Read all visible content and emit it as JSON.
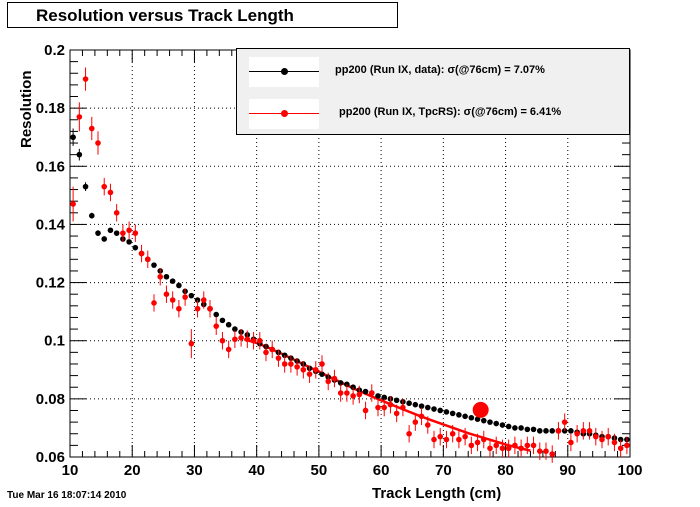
{
  "page": {
    "timestamp": "Tue Mar 16 18:07:14 2010"
  },
  "colors": {
    "series_data": "#000000",
    "series_sim": "#ff0000",
    "legend_bg": "#f0f0f0",
    "grid": "#000000"
  },
  "chart_data": {
    "type": "scatter",
    "title": "Resolution versus Track Length",
    "xlabel": "Track Length (cm)",
    "ylabel": "Resolution",
    "xlim": [
      10,
      100
    ],
    "ylim": [
      0.06,
      0.2
    ],
    "xticks": [
      10,
      20,
      30,
      40,
      50,
      60,
      70,
      80,
      90,
      100
    ],
    "yticks": [
      0.06,
      0.08,
      0.1,
      0.12,
      0.14,
      0.16,
      0.18,
      0.2
    ],
    "ytick_labels": [
      "0.06",
      "0.08",
      "0.1",
      "0.12",
      "0.14",
      "0.16",
      "0.18",
      "0.2"
    ],
    "grid": true,
    "legend_position": "top-right",
    "series": [
      {
        "name": "pp200 (Run IX, data): σ(@76cm) =  7.07%",
        "color": "#000000",
        "marker": "circle",
        "x": [
          10.5,
          11.5,
          12.5,
          13.5,
          14.5,
          15.5,
          16.5,
          17.5,
          18.5,
          19.5,
          20.5,
          21.5,
          22.5,
          23.5,
          24.5,
          25.5,
          26.5,
          27.5,
          28.5,
          29.5,
          30.5,
          31.5,
          32.5,
          33.5,
          34.5,
          35.5,
          36.5,
          37.5,
          38.5,
          39.5,
          40.5,
          41.5,
          42.5,
          43.5,
          44.5,
          45.5,
          46.5,
          47.5,
          48.5,
          49.5,
          50.5,
          51.5,
          52.5,
          53.5,
          54.5,
          55.5,
          56.5,
          57.5,
          58.5,
          59.5,
          60.5,
          61.5,
          62.5,
          63.5,
          64.5,
          65.5,
          66.5,
          67.5,
          68.5,
          69.5,
          70.5,
          71.5,
          72.5,
          73.5,
          74.5,
          75.5,
          76.5,
          77.5,
          78.5,
          79.5,
          80.5,
          81.5,
          82.5,
          83.5,
          84.5,
          85.5,
          86.5,
          87.5,
          88.5,
          89.5,
          90.5,
          91.5,
          92.5,
          93.5,
          94.5,
          95.5,
          96.5,
          97.5,
          98.5,
          99.5
        ],
        "y": [
          0.17,
          0.164,
          0.153,
          0.143,
          0.137,
          0.135,
          0.138,
          0.137,
          0.135,
          0.134,
          0.132,
          0.13,
          0.128,
          0.126,
          0.124,
          0.122,
          0.1205,
          0.119,
          0.117,
          0.1155,
          0.114,
          0.1125,
          0.111,
          0.109,
          0.107,
          0.1055,
          0.104,
          0.103,
          0.102,
          0.1005,
          0.099,
          0.098,
          0.097,
          0.096,
          0.095,
          0.094,
          0.093,
          0.092,
          0.0905,
          0.0895,
          0.0885,
          0.0875,
          0.0865,
          0.0855,
          0.085,
          0.084,
          0.083,
          0.0825,
          0.082,
          0.081,
          0.0805,
          0.08,
          0.0795,
          0.079,
          0.0785,
          0.078,
          0.0775,
          0.077,
          0.0765,
          0.076,
          0.0755,
          0.075,
          0.0745,
          0.074,
          0.0735,
          0.073,
          0.0725,
          0.072,
          0.0715,
          0.071,
          0.0705,
          0.07,
          0.07,
          0.0695,
          0.0695,
          0.069,
          0.069,
          0.069,
          0.069,
          0.069,
          0.069,
          0.0685,
          0.068,
          0.068,
          0.0675,
          0.067,
          0.067,
          0.0665,
          0.066,
          0.066
        ],
        "yerr": [
          0.003,
          0.002,
          0.0015,
          0.001,
          0.001,
          0.0008,
          0.0008,
          0.0007,
          0.0007,
          0.0006,
          0.0006,
          0.0005,
          0.0005,
          0.0005,
          0.0004,
          0.0004,
          0.0004,
          0.0004,
          0.0003,
          0.0003,
          0.0003,
          0.0003,
          0.0003,
          0.0003,
          0.0003,
          0.0003,
          0.0003,
          0.0003,
          0.0003,
          0.0003,
          0.0003,
          0.0003,
          0.0003,
          0.0003,
          0.0003,
          0.0003,
          0.0003,
          0.0003,
          0.0003,
          0.0003,
          0.0003,
          0.0003,
          0.0003,
          0.0003,
          0.0003,
          0.0003,
          0.0003,
          0.0003,
          0.0003,
          0.0003,
          0.0003,
          0.0003,
          0.0003,
          0.0003,
          0.0003,
          0.0003,
          0.0003,
          0.0003,
          0.0003,
          0.0003,
          0.0003,
          0.0003,
          0.0003,
          0.0003,
          0.0003,
          0.0003,
          0.0003,
          0.0003,
          0.0003,
          0.0003,
          0.0003,
          0.0003,
          0.0003,
          0.0003,
          0.0003,
          0.0003,
          0.0003,
          0.0003,
          0.0003,
          0.0003,
          0.0003,
          0.0003,
          0.0003,
          0.0003,
          0.0003,
          0.0003,
          0.0003,
          0.0003,
          0.0003,
          0.0003
        ]
      },
      {
        "name": "pp200 (Run IX, TpcRS):  σ(@76cm) =  6.41%",
        "color": "#ff0000",
        "marker": "circle",
        "x": [
          10.5,
          11.5,
          12.5,
          13.5,
          14.5,
          15.5,
          16.5,
          17.5,
          18.5,
          19.5,
          20.5,
          21.5,
          22.5,
          23.5,
          24.5,
          25.5,
          26.5,
          27.5,
          28.5,
          29.5,
          30.5,
          31.5,
          32.5,
          33.5,
          34.5,
          35.5,
          36.5,
          37.5,
          38.5,
          39.5,
          40.5,
          41.5,
          42.5,
          43.5,
          44.5,
          45.5,
          46.5,
          47.5,
          48.5,
          49.5,
          50.5,
          51.5,
          52.5,
          53.5,
          54.5,
          55.5,
          56.5,
          57.5,
          58.5,
          59.5,
          60.5,
          61.5,
          62.5,
          63.5,
          64.5,
          65.5,
          66.5,
          67.5,
          68.5,
          69.5,
          70.5,
          71.5,
          72.5,
          73.5,
          74.5,
          75.5,
          76.5,
          77.5,
          78.5,
          79.5,
          80.5,
          81.5,
          82.5,
          83.5,
          84.5,
          85.5,
          86.5,
          87.5,
          88.5,
          89.5,
          90.5,
          91.5,
          92.5,
          93.5,
          94.5,
          95.5,
          96.5,
          97.5,
          98.5,
          99.5
        ],
        "y": [
          0.147,
          0.177,
          0.19,
          0.173,
          0.168,
          0.153,
          0.151,
          0.144,
          0.137,
          0.138,
          0.137,
          0.13,
          0.128,
          0.113,
          0.122,
          0.116,
          0.114,
          0.111,
          0.115,
          0.099,
          0.111,
          0.114,
          0.111,
          0.105,
          0.1,
          0.097,
          0.1005,
          0.101,
          0.1005,
          0.1,
          0.1,
          0.096,
          0.097,
          0.094,
          0.092,
          0.092,
          0.091,
          0.09,
          0.0885,
          0.09,
          0.092,
          0.086,
          0.087,
          0.082,
          0.082,
          0.081,
          0.0815,
          0.076,
          0.082,
          0.077,
          0.077,
          0.078,
          0.075,
          0.077,
          0.068,
          0.072,
          0.074,
          0.071,
          0.066,
          0.067,
          0.066,
          0.068,
          0.066,
          0.067,
          0.064,
          0.065,
          0.066,
          0.063,
          0.064,
          0.063,
          0.063,
          0.064,
          0.063,
          0.064,
          0.064,
          0.062,
          0.062,
          0.061,
          0.069,
          0.072,
          0.065,
          0.068,
          0.069,
          0.069,
          0.067,
          0.066,
          0.067,
          0.065,
          0.063,
          0.064
        ],
        "yerr": [
          0.006,
          0.005,
          0.004,
          0.004,
          0.004,
          0.003,
          0.003,
          0.003,
          0.003,
          0.003,
          0.003,
          0.003,
          0.003,
          0.003,
          0.003,
          0.003,
          0.003,
          0.003,
          0.003,
          0.005,
          0.003,
          0.003,
          0.003,
          0.003,
          0.003,
          0.003,
          0.003,
          0.003,
          0.003,
          0.003,
          0.003,
          0.003,
          0.003,
          0.003,
          0.003,
          0.003,
          0.003,
          0.003,
          0.003,
          0.003,
          0.003,
          0.003,
          0.003,
          0.003,
          0.003,
          0.003,
          0.003,
          0.003,
          0.003,
          0.003,
          0.003,
          0.003,
          0.003,
          0.003,
          0.003,
          0.003,
          0.003,
          0.003,
          0.003,
          0.003,
          0.003,
          0.003,
          0.003,
          0.003,
          0.003,
          0.003,
          0.003,
          0.003,
          0.003,
          0.003,
          0.003,
          0.003,
          0.003,
          0.003,
          0.003,
          0.003,
          0.003,
          0.003,
          0.003,
          0.003,
          0.003,
          0.003,
          0.003,
          0.003,
          0.003,
          0.003,
          0.003,
          0.003,
          0.003,
          0.003
        ]
      }
    ],
    "fit_curve": {
      "color": "#ff0000",
      "x": [
        38,
        40,
        42,
        44,
        46,
        48,
        50,
        52,
        54,
        56,
        58,
        60,
        62,
        64,
        66,
        68,
        70,
        72,
        74,
        76,
        78,
        80,
        82,
        84
      ],
      "y": [
        0.1005,
        0.0992,
        0.0975,
        0.0955,
        0.0935,
        0.0914,
        0.0893,
        0.0872,
        0.0852,
        0.0832,
        0.0813,
        0.0795,
        0.0777,
        0.076,
        0.0743,
        0.0727,
        0.0712,
        0.0697,
        0.0682,
        0.0669,
        0.0656,
        0.0643,
        0.0632,
        0.0622
      ]
    },
    "marker_point": {
      "x": 76,
      "y": 0.0762,
      "color": "#ff0000"
    }
  }
}
